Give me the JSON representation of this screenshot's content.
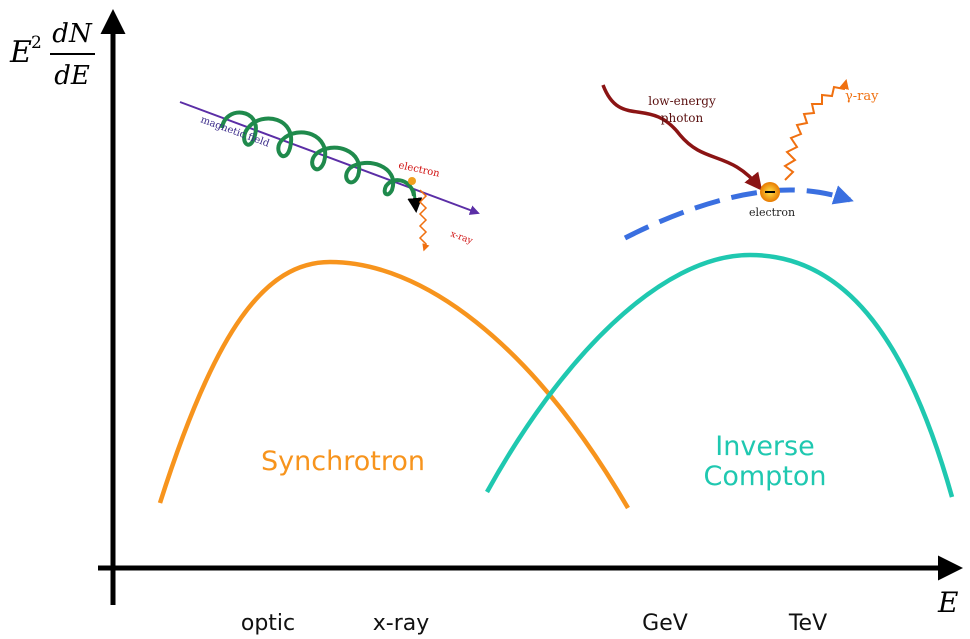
{
  "axes": {
    "y_label": {
      "base": "E",
      "exponent": "2",
      "numerator": "dN",
      "denominator": "dE"
    },
    "x_label": "E",
    "x_ticks": [
      "optic",
      "x-ray",
      "GeV",
      "TeV"
    ]
  },
  "curves": [
    {
      "label": [
        "Synchrotron"
      ]
    },
    {
      "label": [
        "Inverse",
        "Compton"
      ]
    }
  ],
  "synchrotron_inset": {
    "field": "magnetic field",
    "particle": "electron",
    "emission": "x-ray"
  },
  "compton_inset": {
    "photon": [
      "low-energy",
      "photon"
    ],
    "emission": "γ-ray",
    "particle": "electron"
  }
}
